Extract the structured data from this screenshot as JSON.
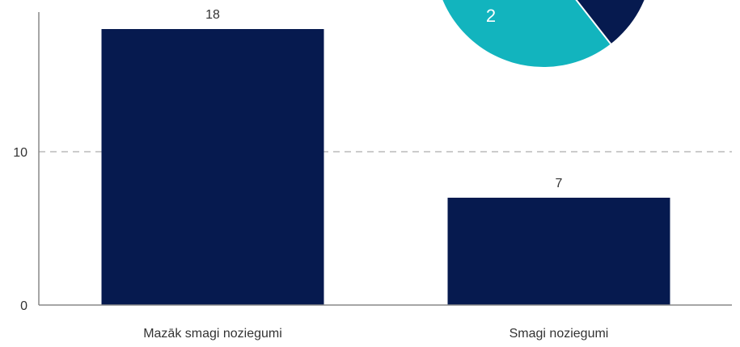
{
  "colors": {
    "bar": "#061A4F",
    "pie_teal": "#12B4BE",
    "pie_navy": "#061A4F",
    "axis": "#888888",
    "grid": "#BBBBBB",
    "text": "#333333",
    "pie_label": "#FFFFFF"
  },
  "chart_data": [
    {
      "type": "bar",
      "categories": [
        "Mazāk smagi noziegumi",
        "Smagi noziegumi"
      ],
      "values": [
        18,
        7
      ],
      "data_labels": [
        "18",
        "7"
      ],
      "title": "",
      "xlabel": "",
      "ylabel": "",
      "ylim": [
        0,
        18
      ],
      "yticks": [
        0,
        10
      ],
      "ytick_labels": [
        "0",
        "10"
      ],
      "grid": "dashed horizontal at 10"
    },
    {
      "type": "pie",
      "visible_portion": "bottom part only, cropped at top of image",
      "slices": [
        {
          "label": "2",
          "value": 2,
          "color": "teal"
        },
        {
          "label": "",
          "value": null,
          "color": "navy"
        }
      ]
    }
  ]
}
